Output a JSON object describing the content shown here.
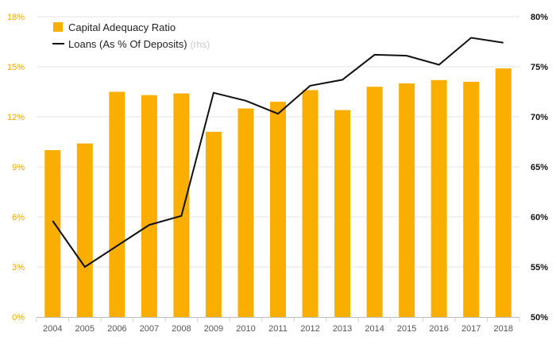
{
  "chart_data": {
    "type": "bar",
    "categories": [
      "2004",
      "2005",
      "2006",
      "2007",
      "2008",
      "2009",
      "2010",
      "2011",
      "2012",
      "2013",
      "2014",
      "2015",
      "2016",
      "2017",
      "2018"
    ],
    "series": [
      {
        "name": "Capital Adequacy Ratio",
        "type": "bar",
        "axis": "left",
        "color": "#f9ae00",
        "values": [
          10.0,
          10.4,
          13.5,
          13.3,
          13.4,
          11.1,
          12.5,
          12.9,
          13.6,
          12.4,
          13.8,
          14.0,
          14.2,
          14.1,
          14.9
        ]
      },
      {
        "name": "Loans (As % Of Deposits)",
        "name_suffix": "(rhs)",
        "type": "line",
        "axis": "right",
        "color": "#111111",
        "values": [
          59.6,
          55.0,
          57.1,
          59.2,
          60.1,
          72.4,
          71.6,
          70.3,
          73.1,
          73.7,
          76.2,
          76.1,
          75.2,
          77.9,
          77.4
        ]
      }
    ],
    "y_left": {
      "ylim": [
        0,
        18
      ],
      "ticks": [
        0,
        3,
        6,
        9,
        12,
        15,
        18
      ],
      "tick_labels": [
        "0%",
        "3%",
        "6%",
        "9%",
        "12%",
        "15%",
        "18%"
      ],
      "color": "#f2a800"
    },
    "y_right": {
      "ylim": [
        50,
        80
      ],
      "ticks": [
        50,
        55,
        60,
        65,
        70,
        75,
        80
      ],
      "tick_labels": [
        "50%",
        "55%",
        "60%",
        "65%",
        "70%",
        "75%",
        "80%"
      ],
      "color": "#111111"
    },
    "grid": true,
    "legend_position": "top-left"
  }
}
